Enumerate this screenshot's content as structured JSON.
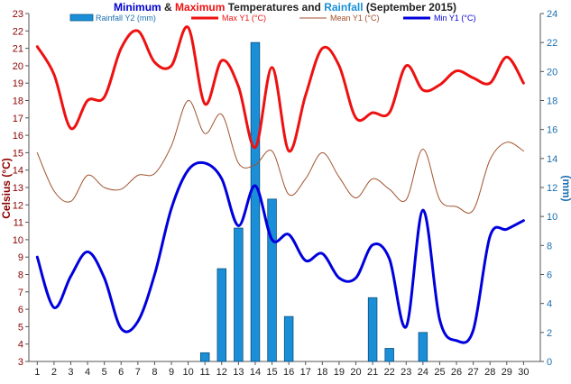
{
  "title": {
    "part1": "Minimum",
    "part2": " & ",
    "part3": "Maximum",
    "part4": " Temperatures and ",
    "part5": "Rainfall",
    "part6": " (September 2015)"
  },
  "colors": {
    "min_word": "#0000cc",
    "max_word": "#ee1111",
    "rain_word": "#1a8fd8",
    "title_text": "#222222",
    "left_axis": "#8b0000",
    "right_axis": "#1a6fb0"
  },
  "chart_data": {
    "type": "combo",
    "title": "Minimum & Maximum Temperatures and Rainfall (September 2015)",
    "ylabel_left": "Celsius (°C)",
    "ylabel_right": "(mm)",
    "ylim_left": [
      3,
      23
    ],
    "ylim_right": [
      0,
      24
    ],
    "yticks_left": [
      3,
      4,
      5,
      6,
      7,
      8,
      9,
      10,
      11,
      12,
      13,
      14,
      15,
      16,
      17,
      18,
      19,
      20,
      21,
      22,
      23
    ],
    "yticks_right": [
      0,
      2,
      4,
      6,
      8,
      10,
      12,
      14,
      16,
      18,
      20,
      22,
      24
    ],
    "legend_position": "top",
    "x": [
      1,
      2,
      3,
      4,
      5,
      6,
      7,
      8,
      9,
      10,
      11,
      12,
      13,
      14,
      15,
      16,
      17,
      18,
      19,
      20,
      21,
      22,
      23,
      24,
      25,
      26,
      27,
      28,
      29,
      30
    ],
    "series": [
      {
        "name": "Rainfall Y2 (mm)",
        "kind": "bar",
        "axis": "right",
        "color": "#1a8fd8",
        "values": [
          0,
          0,
          0,
          0,
          0,
          0,
          0,
          0,
          0,
          0,
          0.6,
          6.4,
          9.2,
          22,
          11.2,
          3.1,
          0,
          0,
          0,
          0,
          4.4,
          0.9,
          0,
          2,
          0,
          0,
          0,
          0,
          0,
          0
        ]
      },
      {
        "name": "Max Y1 (°C)",
        "kind": "line",
        "axis": "left",
        "color": "#ee1111",
        "width": 3,
        "values": [
          21.1,
          19.5,
          16.4,
          18.0,
          18.2,
          21.0,
          22.0,
          20.2,
          20.0,
          22.2,
          17.8,
          20.3,
          18.8,
          15.3,
          19.9,
          15.1,
          18.3,
          21.0,
          20.0,
          17.0,
          17.3,
          17.3,
          20.0,
          18.6,
          18.9,
          19.7,
          19.3,
          19.0,
          20.5,
          19.0
        ]
      },
      {
        "name": "Mean Y1 (°C)",
        "kind": "line",
        "axis": "left",
        "color": "#a0522d",
        "width": 1,
        "values": [
          15.0,
          12.8,
          12.2,
          13.7,
          13.0,
          12.9,
          13.7,
          13.8,
          15.4,
          18.0,
          16.1,
          17.2,
          14.4,
          14.3,
          15.1,
          12.6,
          13.5,
          15.0,
          13.6,
          12.4,
          13.5,
          12.9,
          12.3,
          15.2,
          12.3,
          11.9,
          11.7,
          14.6,
          15.6,
          15.1
        ]
      },
      {
        "name": "Min Y1 (°C)",
        "kind": "line",
        "axis": "left",
        "color": "#0000dd",
        "width": 3,
        "values": [
          9.0,
          6.1,
          7.9,
          9.3,
          7.8,
          4.9,
          5.3,
          8.0,
          11.8,
          14.0,
          14.4,
          13.5,
          10.8,
          13.1,
          10.0,
          10.3,
          8.8,
          9.2,
          7.8,
          7.8,
          9.7,
          8.9,
          5.0,
          11.7,
          5.4,
          4.2,
          4.8,
          10.2,
          10.6,
          11.1
        ]
      }
    ]
  }
}
